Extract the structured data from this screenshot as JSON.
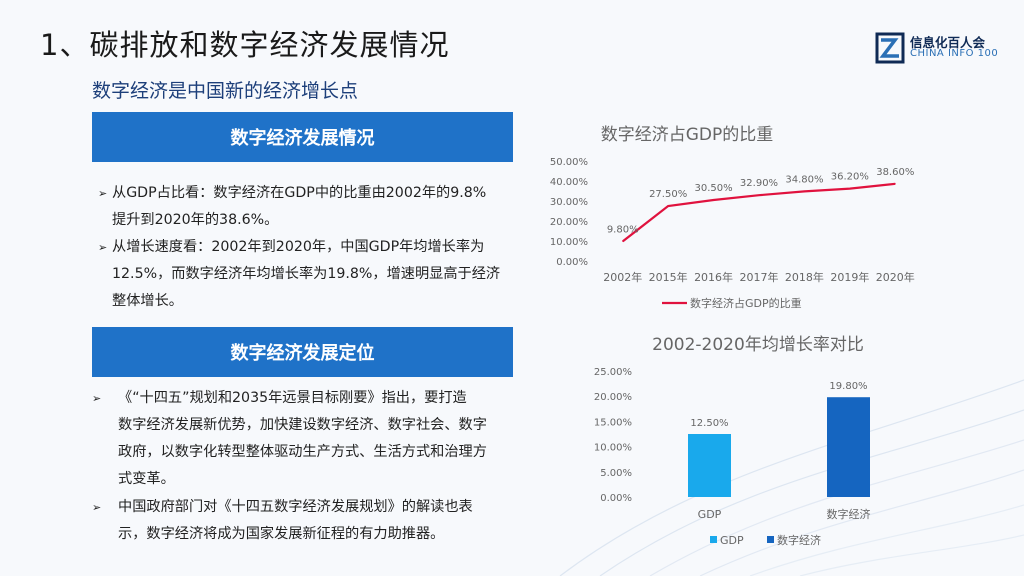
{
  "page": {
    "title": "1、碳排放和数字经济发展情况",
    "subtitle": "数字经济是中国新的经济增长点"
  },
  "logo": {
    "name_cn": "信息化百人会",
    "name_en": "CHINA INFO 100"
  },
  "section1": {
    "banner": "数字经济发展情况",
    "bullet1_line1": "从GDP占比看：数字经济在GDP中的比重由2002年的9.8%",
    "bullet1_line2": "提升到2020年的38.6%。",
    "bullet2_line1": "从增长速度看：2002年到2020年，中国GDP年均增长率为",
    "bullet2_line2": "12.5%，而数字经济年均增长率为19.8%，增速明显高于经济",
    "bullet2_line3": "整体增长。"
  },
  "section2": {
    "banner": "数字经济发展定位",
    "bullet1_line1": "《“十四五”规划和2035年远景目标刚要》指出，要打造",
    "bullet1_line2": "数字经济发展新优势，加快建设数字经济、数字社会、数字",
    "bullet1_line3": "政府，以数字化转型整体驱动生产方式、生活方式和治理方",
    "bullet1_line4": "式变革。",
    "bullet2_line1": "中国政府部门对《十四五数字经济发展规划》的解读也表",
    "bullet2_line2": "示，数字经济将成为国家发展新征程的有力助推器。"
  },
  "bullet_glyph": "➢",
  "chart_data": [
    {
      "type": "line",
      "title": "数字经济占GDP的比重",
      "categories": [
        "2002年",
        "2015年",
        "2016年",
        "2017年",
        "2018年",
        "2019年",
        "2020年"
      ],
      "series": [
        {
          "name": "数字经济占GDP的比重",
          "values": [
            9.8,
            27.5,
            30.5,
            32.9,
            34.8,
            36.2,
            38.6
          ],
          "color": "#e0123e"
        }
      ],
      "data_labels": [
        "9.80%",
        "27.50%",
        "30.50%",
        "32.90%",
        "34.80%",
        "36.20%",
        "38.60%"
      ],
      "yticks": [
        "0.00%",
        "10.00%",
        "20.00%",
        "30.00%",
        "40.00%",
        "50.00%"
      ],
      "ylim": [
        0,
        50
      ],
      "legend": "bottom"
    },
    {
      "type": "bar",
      "title": "2002-2020年均增长率对比",
      "categories": [
        "GDP",
        "数字经济"
      ],
      "values": [
        12.5,
        19.8
      ],
      "colors": [
        "#19a9ec",
        "#1565c0"
      ],
      "data_labels": [
        "12.50%",
        "19.80%"
      ],
      "yticks": [
        "0.00%",
        "5.00%",
        "10.00%",
        "15.00%",
        "20.00%",
        "25.00%"
      ],
      "ylim": [
        0,
        25
      ],
      "legend_entries": [
        "GDP",
        "数字经济"
      ],
      "legend": "bottom"
    }
  ],
  "colors": {
    "banner": "#1f72c8",
    "title": "#1a1a1a",
    "subtitle": "#1d3f7a",
    "axis_text": "#666666",
    "chart_title": "#666666"
  }
}
